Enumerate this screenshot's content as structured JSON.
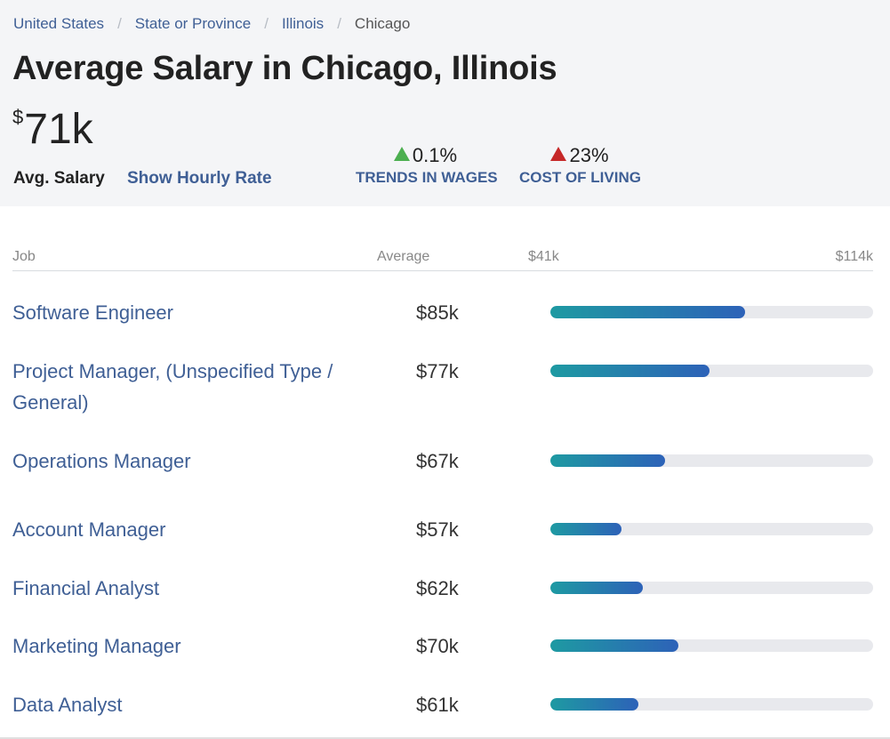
{
  "breadcrumb": [
    "United States",
    "State or Province",
    "Illinois",
    "Chicago"
  ],
  "title": "Average Salary in Chicago, Illinois",
  "salary": {
    "currency": "$",
    "amount": "71k"
  },
  "avg_label": "Avg. Salary",
  "hourly_link": "Show Hourly Rate",
  "stats": {
    "wages": {
      "value": "0.1%",
      "label": "TRENDS IN WAGES",
      "color": "#4caf50"
    },
    "cost_of_living": {
      "value": "23%",
      "label": "COST OF LIVING",
      "color": "#c62828"
    }
  },
  "table": {
    "headers": {
      "job": "Job",
      "average": "Average",
      "min": "$41k",
      "max": "$114k"
    },
    "range": [
      41,
      114
    ],
    "rows": [
      {
        "job": "Software Engineer",
        "average": "$85k",
        "value": 85
      },
      {
        "job": "Project Manager, (Unspecified Type / General)",
        "average": "$77k",
        "value": 77
      },
      {
        "job": "Operations Manager",
        "average": "$67k",
        "value": 67
      },
      {
        "job": "Account Manager",
        "average": "$57k",
        "value": 57
      },
      {
        "job": "Financial Analyst",
        "average": "$62k",
        "value": 62
      },
      {
        "job": "Marketing Manager",
        "average": "$70k",
        "value": 70
      },
      {
        "job": "Data Analyst",
        "average": "$61k",
        "value": 61
      }
    ]
  }
}
